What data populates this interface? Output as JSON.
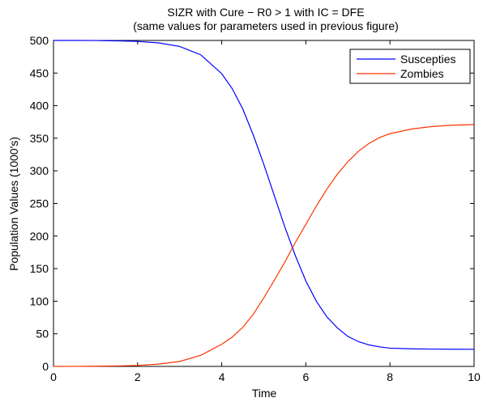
{
  "chart_data": {
    "type": "line",
    "title": "SIZR with Cure − R0 > 1 with IC = DFE",
    "subtitle": "(same values for parameters used in previous figure)",
    "xlabel": "Time",
    "ylabel": "Population Values (1000's)",
    "xlim": [
      0,
      10
    ],
    "ylim": [
      0,
      500
    ],
    "xticks": [
      0,
      2,
      4,
      6,
      8,
      10
    ],
    "yticks": [
      0,
      50,
      100,
      150,
      200,
      250,
      300,
      350,
      400,
      450,
      500
    ],
    "grid": false,
    "legend_position": "top-right",
    "series": [
      {
        "name": "Suscepties",
        "color": "#0000ff",
        "x": [
          0,
          0.5,
          1,
          1.5,
          2,
          2.5,
          3,
          3.5,
          4,
          4.25,
          4.5,
          4.75,
          5,
          5.25,
          5.5,
          5.75,
          6,
          6.25,
          6.5,
          6.75,
          7,
          7.25,
          7.5,
          7.75,
          8,
          8.5,
          9,
          9.5,
          10
        ],
        "y": [
          500,
          500,
          499.9,
          499.4,
          498.5,
          496.3,
          490.8,
          478,
          449,
          426,
          395,
          355,
          310,
          262,
          214,
          170,
          131,
          100,
          76,
          59,
          46,
          38,
          33,
          30,
          28,
          27,
          26.6,
          26.4,
          26.3
        ]
      },
      {
        "name": "Zombies",
        "color": "#ff3300",
        "x": [
          0,
          0.5,
          1,
          1.5,
          2,
          2.5,
          3,
          3.5,
          4,
          4.25,
          4.5,
          4.75,
          5,
          5.25,
          5.5,
          5.75,
          6,
          6.25,
          6.5,
          6.75,
          7,
          7.25,
          7.5,
          7.75,
          8,
          8.5,
          9,
          9.5,
          10
        ],
        "y": [
          0,
          0.1,
          0.3,
          0.7,
          1.5,
          3.6,
          7.6,
          17,
          34,
          45,
          60,
          80,
          105,
          132,
          160,
          190,
          218,
          246,
          272,
          295,
          314,
          330,
          342,
          351,
          357,
          364,
          368,
          370,
          371
        ]
      }
    ]
  }
}
